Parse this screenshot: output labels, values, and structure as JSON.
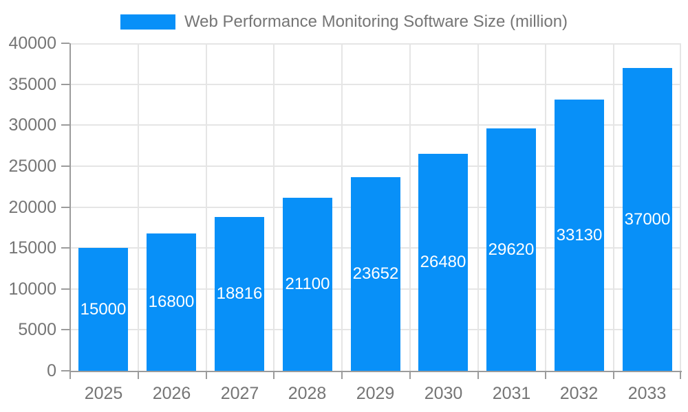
{
  "chart_data": {
    "type": "bar",
    "title": "Web Performance Monitoring Software Size (million)",
    "categories": [
      "2025",
      "2026",
      "2027",
      "2028",
      "2029",
      "2030",
      "2031",
      "2032",
      "2033"
    ],
    "values": [
      15000,
      16800,
      18816,
      21100,
      23652,
      26480,
      29620,
      33130,
      37000
    ],
    "value_labels": [
      "15000",
      "16800",
      "18816",
      "21100",
      "23652",
      "26480",
      "29620",
      "33130",
      "37000"
    ],
    "yticks": [
      0,
      5000,
      10000,
      15000,
      20000,
      25000,
      30000,
      35000,
      40000
    ],
    "ylim": [
      0,
      40000
    ],
    "xlabel": "",
    "ylabel": "",
    "grid": true,
    "legend_position": "top",
    "colors": {
      "bar": "#0890F8",
      "grid": "#e5e5e5",
      "axis": "#9b9b9b",
      "tick_text": "#757575",
      "value_text": "#ffffff"
    }
  }
}
